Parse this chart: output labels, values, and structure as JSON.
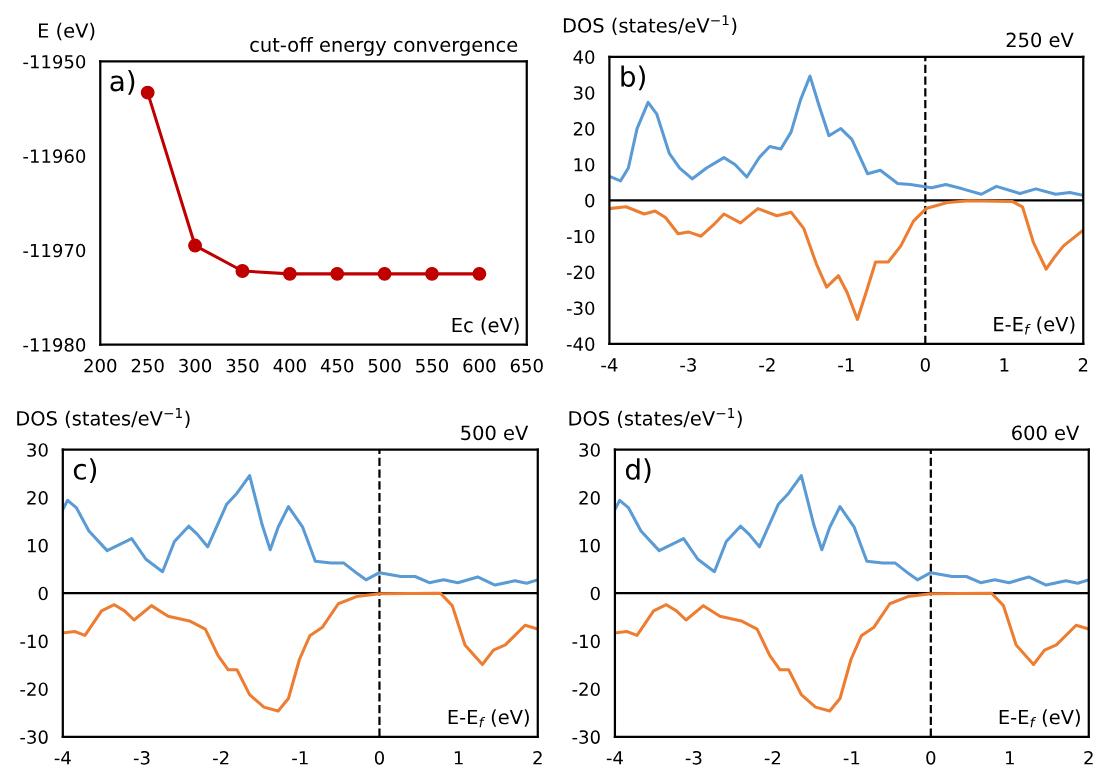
{
  "chart_data": [
    {
      "type": "line",
      "title": "cut-off energy convergence",
      "ylabel": "E (eV)",
      "xlabel": "Ec (eV)",
      "annotations": [
        "a)"
      ],
      "marker": "circle",
      "x": [
        250,
        300,
        350,
        400,
        450,
        500,
        550,
        600
      ],
      "series": [
        {
          "color": "#c00000",
          "values": [
            -11953.3,
            -11969.5,
            -11972.2,
            -11972.5,
            -11972.5,
            -11972.5,
            -11972.5,
            -11972.5
          ]
        }
      ],
      "xlim": [
        200,
        650
      ],
      "xticks": [
        200,
        250,
        300,
        350,
        400,
        450,
        500,
        550,
        600,
        650
      ],
      "ylim": [
        -11980,
        -11950
      ],
      "yticks": [
        -11980,
        -11970,
        -11960,
        -11950
      ]
    },
    {
      "type": "line",
      "title": "250 eV",
      "ylabel": "DOS (states/eV$^{−1}$)",
      "xlabel": "E-E$_{f}$ (eV)",
      "annotations": [
        "b)"
      ],
      "series": [
        {
          "color": "#5b9bd5",
          "x": [
            -4,
            -3.86,
            -3.76,
            -3.65,
            -3.51,
            -3.4,
            -3.24,
            -3.11,
            -2.95,
            -2.77,
            -2.55,
            -2.41,
            -2.26,
            -2.1,
            -1.97,
            -1.83,
            -1.7,
            -1.58,
            -1.46,
            -1.34,
            -1.22,
            -1.07,
            -0.93,
            -0.73,
            -0.57,
            -0.35,
            -0.19,
            0.08,
            0.26,
            0.47,
            0.71,
            0.9,
            1.2,
            1.4,
            1.65,
            1.83,
            2
          ],
          "values": [
            6.7,
            5.4,
            9,
            20,
            27.3,
            24,
            13,
            9,
            6,
            9,
            11.9,
            10,
            6.5,
            12,
            15,
            14.3,
            19,
            28,
            34.6,
            26,
            18,
            20,
            17,
            7.4,
            8.4,
            4.7,
            4.4,
            3.5,
            4.4,
            3.2,
            1.7,
            3.9,
            1.9,
            3.2,
            1.7,
            2.2,
            1.4
          ]
        },
        {
          "color": "#ed7d31",
          "x": [
            -4,
            -3.79,
            -3.56,
            -3.42,
            -3.29,
            -3.13,
            -3,
            -2.84,
            -2.68,
            -2.55,
            -2.34,
            -2.12,
            -1.88,
            -1.7,
            -1.54,
            -1.38,
            -1.25,
            -1.1,
            -0.99,
            -0.86,
            -0.75,
            -0.63,
            -0.47,
            -0.31,
            -0.15,
            0.01,
            0.28,
            0.55,
            1.1,
            1.23,
            1.37,
            1.53,
            1.64,
            1.75,
            2
          ],
          "values": [
            -2.3,
            -1.8,
            -3.8,
            -3,
            -4.8,
            -9.3,
            -8.8,
            -10,
            -6.8,
            -3.8,
            -6.3,
            -2.3,
            -4.3,
            -3.3,
            -7.8,
            -17.7,
            -24.2,
            -21,
            -25.7,
            -33.2,
            -25.7,
            -17.2,
            -17.2,
            -12.7,
            -5.8,
            -2.3,
            -0.6,
            -0.1,
            -0.3,
            -1.8,
            -11.8,
            -19.2,
            -15.7,
            -12.7,
            -8.3
          ]
        }
      ],
      "xlim": [
        -4,
        2
      ],
      "xticks": [
        -4,
        -3,
        -2,
        -1,
        0,
        1,
        2
      ],
      "ylim": [
        -40,
        40
      ],
      "yticks": [
        -40,
        -30,
        -20,
        -10,
        0,
        10,
        20,
        30,
        40
      ],
      "ref_lines": [
        {
          "axis": "x",
          "value": 0,
          "color": "#000000",
          "line_style": "dashed"
        },
        {
          "axis": "y",
          "value": 0,
          "color": "#000000",
          "line_style": "solid"
        }
      ]
    },
    {
      "type": "line",
      "title": "500 eV",
      "ylabel": "DOS (states/eV$^{−1}$)",
      "xlabel": "E-E$_{f}$ (eV)",
      "annotations": [
        "c)"
      ],
      "series": [
        {
          "color": "#5b9bd5",
          "x": [
            -4,
            -3.94,
            -3.83,
            -3.67,
            -3.44,
            -3.13,
            -2.95,
            -2.74,
            -2.59,
            -2.41,
            -2.3,
            -2.17,
            -1.93,
            -1.8,
            -1.64,
            -1.48,
            -1.38,
            -1.28,
            -1.15,
            -0.97,
            -0.81,
            -0.61,
            -0.45,
            -0.28,
            -0.17,
            0,
            0.27,
            0.45,
            0.63,
            0.81,
            0.99,
            1.24,
            1.46,
            1.71,
            1.86,
            2
          ],
          "values": [
            17.5,
            19.4,
            17.9,
            13,
            8.9,
            11.4,
            7.1,
            4.5,
            10.8,
            14,
            12.3,
            9.7,
            18.6,
            20.9,
            24.6,
            14.2,
            9.1,
            13.8,
            18.1,
            13.8,
            6.7,
            6.3,
            6.3,
            4.1,
            2.8,
            4.3,
            3.5,
            3.5,
            2.2,
            2.8,
            2.2,
            3.4,
            1.7,
            2.6,
            2.1,
            2.8
          ]
        },
        {
          "color": "#ed7d31",
          "x": [
            -4,
            -3.85,
            -3.72,
            -3.51,
            -3.35,
            -3.22,
            -3.1,
            -2.88,
            -2.67,
            -2.4,
            -2.2,
            -2.04,
            -1.91,
            -1.8,
            -1.64,
            -1.46,
            -1.28,
            -1.15,
            -1.01,
            -0.88,
            -0.72,
            -0.52,
            -0.29,
            0,
            0.77,
            0.92,
            1.08,
            1.3,
            1.44,
            1.59,
            1.84,
            2
          ],
          "values": [
            -8.3,
            -8,
            -8.8,
            -3.7,
            -2.4,
            -3.7,
            -5.6,
            -2.6,
            -4.8,
            -5.8,
            -7.5,
            -13,
            -16,
            -16,
            -21.2,
            -23.8,
            -24.6,
            -22,
            -13.8,
            -8.9,
            -7.1,
            -2.2,
            -0.7,
            -0.1,
            0,
            -2.6,
            -10.8,
            -14.9,
            -11.9,
            -10.8,
            -6.7,
            -7.5
          ]
        }
      ],
      "xlim": [
        -4,
        2
      ],
      "xticks": [
        -4,
        -3,
        -2,
        -1,
        0,
        1,
        2
      ],
      "ylim": [
        -30,
        30
      ],
      "yticks": [
        -30,
        -20,
        -10,
        0,
        10,
        20,
        30
      ],
      "ref_lines": [
        {
          "axis": "x",
          "value": 0,
          "color": "#000000",
          "line_style": "dashed"
        },
        {
          "axis": "y",
          "value": 0,
          "color": "#000000",
          "line_style": "solid"
        }
      ]
    },
    {
      "type": "line",
      "title": "600 eV",
      "ylabel": "DOS (states/eV$^{−1}$)",
      "xlabel": "E-E$_{f}$ (eV)",
      "annotations": [
        "d)"
      ],
      "series": [
        {
          "color": "#5b9bd5",
          "x": [
            -4,
            -3.94,
            -3.83,
            -3.67,
            -3.44,
            -3.13,
            -2.95,
            -2.74,
            -2.59,
            -2.41,
            -2.3,
            -2.17,
            -1.93,
            -1.8,
            -1.64,
            -1.48,
            -1.38,
            -1.28,
            -1.15,
            -0.97,
            -0.81,
            -0.61,
            -0.45,
            -0.28,
            -0.17,
            0,
            0.27,
            0.45,
            0.63,
            0.81,
            0.99,
            1.24,
            1.46,
            1.71,
            1.86,
            2
          ],
          "values": [
            17.5,
            19.4,
            17.9,
            13,
            8.9,
            11.4,
            7.1,
            4.5,
            10.8,
            14,
            12.3,
            9.7,
            18.6,
            20.9,
            24.6,
            14.2,
            9.1,
            13.8,
            18.1,
            13.8,
            6.7,
            6.3,
            6.3,
            4.1,
            2.8,
            4.3,
            3.5,
            3.5,
            2.2,
            2.8,
            2.2,
            3.4,
            1.7,
            2.6,
            2.1,
            2.8
          ]
        },
        {
          "color": "#ed7d31",
          "x": [
            -4,
            -3.85,
            -3.72,
            -3.51,
            -3.35,
            -3.22,
            -3.1,
            -2.88,
            -2.67,
            -2.4,
            -2.2,
            -2.04,
            -1.91,
            -1.8,
            -1.64,
            -1.46,
            -1.28,
            -1.15,
            -1.01,
            -0.88,
            -0.72,
            -0.52,
            -0.29,
            0,
            0.77,
            0.92,
            1.08,
            1.3,
            1.44,
            1.59,
            1.84,
            2
          ],
          "values": [
            -8.3,
            -8,
            -8.8,
            -3.7,
            -2.4,
            -3.7,
            -5.6,
            -2.6,
            -4.8,
            -5.8,
            -7.5,
            -13,
            -16,
            -16,
            -21.2,
            -23.8,
            -24.6,
            -22,
            -13.8,
            -8.9,
            -7.1,
            -2.2,
            -0.7,
            -0.1,
            0,
            -2.6,
            -10.8,
            -14.9,
            -11.9,
            -10.8,
            -6.7,
            -7.5
          ]
        }
      ],
      "xlim": [
        -4,
        2
      ],
      "xticks": [
        -4,
        -3,
        -2,
        -1,
        0,
        1,
        2
      ],
      "ylim": [
        -30,
        30
      ],
      "yticks": [
        -30,
        -20,
        -10,
        0,
        10,
        20,
        30
      ],
      "ref_lines": [
        {
          "axis": "x",
          "value": 0,
          "color": "#000000",
          "line_style": "dashed"
        },
        {
          "axis": "y",
          "value": 0,
          "color": "#000000",
          "line_style": "solid"
        }
      ]
    }
  ]
}
